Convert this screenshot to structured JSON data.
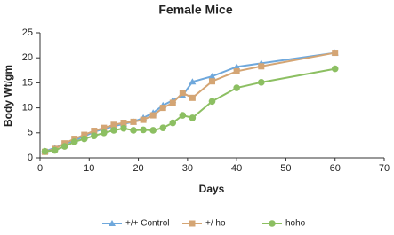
{
  "chart_data": {
    "type": "line",
    "title": "Female Mice",
    "x_label": "Days",
    "y_label": "Body  Wt/gm",
    "xlim": [
      0,
      70
    ],
    "xticks": [
      0,
      10,
      20,
      30,
      40,
      50,
      60,
      70
    ],
    "ylim": [
      0,
      25
    ],
    "yticks": [
      0,
      5,
      10,
      15,
      20,
      25
    ],
    "grid": false,
    "legend": "bottom",
    "x": [
      1,
      3,
      5,
      7,
      9,
      11,
      13,
      15,
      17,
      19,
      21,
      23,
      25,
      27,
      29,
      31,
      35,
      40,
      45,
      60
    ],
    "series": [
      {
        "name": "+/+ Control",
        "color": "#6fa8dc",
        "marker": "triangle",
        "values": [
          1.3,
          2,
          2.8,
          3.5,
          4.3,
          5.2,
          5.8,
          6.3,
          6.8,
          7.2,
          8,
          9,
          10.5,
          11.5,
          12.5,
          15.2,
          16.3,
          18.2,
          18.9,
          21
        ]
      },
      {
        "name": "+/ ho",
        "color": "#d4a574",
        "marker": "square",
        "values": [
          1.2,
          1.8,
          2.9,
          3.8,
          4.6,
          5.4,
          6,
          6.6,
          7,
          7.2,
          7.6,
          8.5,
          10,
          11,
          13,
          12,
          15.3,
          17.3,
          18.3,
          21
        ]
      },
      {
        "name": "hoho",
        "color": "#8cbf62",
        "marker": "circle",
        "values": [
          1.3,
          1.5,
          2.3,
          3.2,
          3.8,
          4.4,
          5,
          5.5,
          5.9,
          5.5,
          5.6,
          5.5,
          6,
          7,
          8.5,
          8,
          11.3,
          14,
          15.1,
          17.8
        ]
      }
    ]
  }
}
